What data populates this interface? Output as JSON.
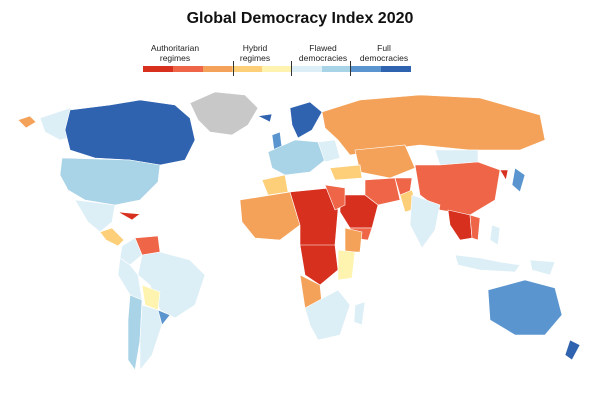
{
  "title": "Global Democracy Index 2020",
  "legend": {
    "categories": [
      {
        "label": "Authoritarian\nregimes",
        "colors": [
          "#d7301f",
          "#ef6548",
          "#f4a259"
        ]
      },
      {
        "label": "Hybrid\nregimes",
        "colors": [
          "#fdcf78",
          "#fef4b0"
        ]
      },
      {
        "label": "Flawed\ndemocracies",
        "colors": [
          "#dceef6",
          "#a9d3e7"
        ]
      },
      {
        "label": "Full\ndemocracies",
        "colors": [
          "#5b95cf",
          "#2f63b0"
        ]
      }
    ]
  },
  "colors": {
    "authoritarian_dark": "#d7301f",
    "authoritarian_mid": "#ef6548",
    "authoritarian_light": "#f4a259",
    "hybrid_orange": "#fdcf78",
    "hybrid_yellow": "#fef4b0",
    "flawed_light": "#dceef6",
    "flawed_mid": "#a9d3e7",
    "full_light": "#5b95cf",
    "full_dark": "#2f63b0",
    "no_data": "#c8c8c8"
  }
}
